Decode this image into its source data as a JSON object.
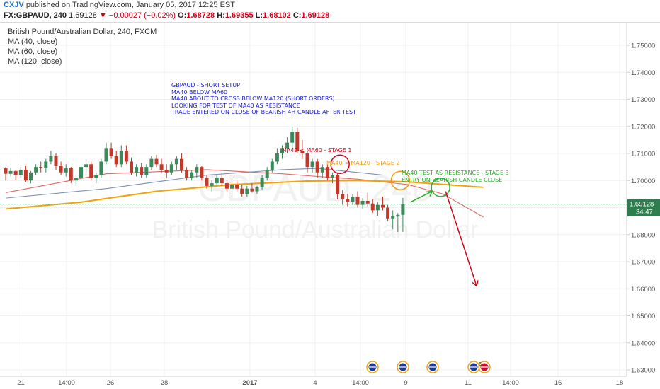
{
  "header": {
    "author": "CXJV",
    "published_text": "published on TradingView.com, January 05, 2017 12:25 EST"
  },
  "quote": {
    "symbol": "FX:GBPAUD, 240",
    "last": "1.69128",
    "change": "−0.00027 (−0.02%)",
    "open_label": "O:",
    "open": "1.68728",
    "high_label": "H:",
    "high": "1.69355",
    "low_label": "L:",
    "low": "1.68102",
    "close_label": "C:",
    "close": "1.69128"
  },
  "legend": {
    "title": "British Pound/Australian Dollar, 240, FXCM",
    "ma40": "MA (40, close)",
    "ma60": "MA (60, close)",
    "ma120": "MA (120, close)"
  },
  "annotations": {
    "setup_lines": [
      "GBPAUD - SHORT SETUP",
      "MA40 BELOW MA60",
      "MA40 ABOUT TO CROSS BELOW MA120 (SHORT ORDERS)",
      "LOOKING FOR TEST OF MA40 AS RESISTANCE",
      "TRADE ENTERED ON CLOSE OF BEARISH 4H CANDLE AFTER TEST"
    ],
    "stage1": "MA40 < MA60 - STAGE 1",
    "stage2": "MA40 < MA120 - STAGE 2",
    "stage3_lines": [
      "MA40 TEST AS RESISTANCE - STAGE 3",
      "ENTRY ON BEARISH CANDLE CLOSE"
    ]
  },
  "watermark": {
    "symbol": "GBPAUD, 240",
    "name": "British Pound/Australian Dollar"
  },
  "price_tag": {
    "price": "1.69128",
    "countdown": "34:47"
  },
  "colors": {
    "up": "#3c8a5c",
    "down": "#c0392b",
    "ma40": "#e06666",
    "ma60": "#7f8fb5",
    "ma120": "#f0a30a",
    "stage1": "#d0021b",
    "stage2": "#f39c12",
    "stage3": "#2bb02b",
    "setup": "#1a1ad6",
    "tag": "#2e7d4f"
  },
  "chart_data": {
    "type": "candlestick",
    "y_ticks": [
      "1.63000",
      "1.64000",
      "1.65000",
      "1.66000",
      "1.67000",
      "1.68000",
      "1.69000",
      "1.70000",
      "1.71000",
      "1.72000",
      "1.73000",
      "1.74000",
      "1.75000"
    ],
    "ylim": [
      1.627,
      1.758
    ],
    "x_ticks": [
      {
        "label": "21",
        "x": 29.5
      },
      {
        "label": "14:00",
        "x": 94
      },
      {
        "label": "26",
        "x": 156
      },
      {
        "label": "28",
        "x": 232
      },
      {
        "label": "2017",
        "x": 353
      },
      {
        "label": "4",
        "x": 445
      },
      {
        "label": "14:00",
        "x": 509
      },
      {
        "label": "9",
        "x": 573
      },
      {
        "label": "11",
        "x": 661
      },
      {
        "label": "14:00",
        "x": 721
      },
      {
        "label": "16",
        "x": 788
      },
      {
        "label": "18",
        "x": 875
      }
    ],
    "x_map": {
      "x": [
        21,
        28,
        31,
        38
      ],
      "i": [
        0,
        42,
        60,
        102
      ]
    },
    "candles_ohlc": [
      [
        1.7045,
        1.705,
        1.7,
        1.7025
      ],
      [
        1.7025,
        1.7045,
        1.7015,
        1.7035
      ],
      [
        1.7035,
        1.704,
        1.7,
        1.702
      ],
      [
        1.702,
        1.705,
        1.701,
        1.704
      ],
      [
        1.704,
        1.7055,
        1.6995,
        1.7
      ],
      [
        1.7,
        1.7035,
        1.699,
        1.703
      ],
      [
        1.703,
        1.706,
        1.702,
        1.705
      ],
      [
        1.705,
        1.707,
        1.703,
        1.7045
      ],
      [
        1.7045,
        1.708,
        1.703,
        1.707
      ],
      [
        1.707,
        1.711,
        1.706,
        1.709
      ],
      [
        1.709,
        1.71,
        1.704,
        1.7055
      ],
      [
        1.7055,
        1.707,
        1.702,
        1.703
      ],
      [
        1.703,
        1.706,
        1.7015,
        1.7045
      ],
      [
        1.7045,
        1.705,
        1.699,
        1.7
      ],
      [
        1.7,
        1.702,
        1.698,
        1.701
      ],
      [
        1.701,
        1.706,
        1.7005,
        1.705
      ],
      [
        1.705,
        1.708,
        1.703,
        1.706
      ],
      [
        1.706,
        1.707,
        1.7,
        1.701
      ],
      [
        1.701,
        1.703,
        1.699,
        1.702
      ],
      [
        1.702,
        1.708,
        1.701,
        1.707
      ],
      [
        1.707,
        1.714,
        1.706,
        1.712
      ],
      [
        1.712,
        1.714,
        1.708,
        1.709
      ],
      [
        1.709,
        1.711,
        1.705,
        1.706
      ],
      [
        1.706,
        1.713,
        1.705,
        1.711
      ],
      [
        1.711,
        1.713,
        1.706,
        1.707
      ],
      [
        1.707,
        1.7085,
        1.702,
        1.703
      ],
      [
        1.703,
        1.706,
        1.7015,
        1.705
      ],
      [
        1.705,
        1.7065,
        1.701,
        1.702
      ],
      [
        1.702,
        1.706,
        1.701,
        1.705
      ],
      [
        1.705,
        1.709,
        1.704,
        1.708
      ],
      [
        1.708,
        1.7095,
        1.705,
        1.706
      ],
      [
        1.706,
        1.708,
        1.703,
        1.704
      ],
      [
        1.704,
        1.706,
        1.701,
        1.703
      ],
      [
        1.703,
        1.707,
        1.702,
        1.706
      ],
      [
        1.706,
        1.709,
        1.704,
        1.708
      ],
      [
        1.708,
        1.71,
        1.703,
        1.704
      ],
      [
        1.704,
        1.705,
        1.7,
        1.701
      ],
      [
        1.701,
        1.704,
        1.7,
        1.703
      ],
      [
        1.703,
        1.706,
        1.701,
        1.705
      ],
      [
        1.705,
        1.7055,
        1.7,
        1.701
      ],
      [
        1.701,
        1.702,
        1.697,
        1.698
      ],
      [
        1.698,
        1.7,
        1.696,
        1.699
      ],
      [
        1.699,
        1.702,
        1.698,
        1.701
      ],
      [
        1.701,
        1.703,
        1.698,
        1.699
      ],
      [
        1.699,
        1.7,
        1.696,
        1.697
      ],
      [
        1.697,
        1.6995,
        1.695,
        1.6985
      ],
      [
        1.6985,
        1.7,
        1.696,
        1.697
      ],
      [
        1.697,
        1.6985,
        1.694,
        1.695
      ],
      [
        1.695,
        1.698,
        1.694,
        1.697
      ],
      [
        1.697,
        1.699,
        1.6955,
        1.696
      ],
      [
        1.696,
        1.698,
        1.695,
        1.6975
      ],
      [
        1.6975,
        1.702,
        1.6965,
        1.701
      ],
      [
        1.701,
        1.705,
        1.7,
        1.704
      ],
      [
        1.704,
        1.708,
        1.703,
        1.707
      ],
      [
        1.707,
        1.712,
        1.706,
        1.71
      ],
      [
        1.71,
        1.713,
        1.708,
        1.712
      ],
      [
        1.712,
        1.716,
        1.71,
        1.714
      ],
      [
        1.714,
        1.72,
        1.712,
        1.718
      ],
      [
        1.718,
        1.7195,
        1.71,
        1.711
      ],
      [
        1.711,
        1.715,
        1.708,
        1.71
      ],
      [
        1.71,
        1.711,
        1.703,
        1.705
      ],
      [
        1.705,
        1.708,
        1.703,
        1.707
      ],
      [
        1.707,
        1.708,
        1.701,
        1.703
      ],
      [
        1.703,
        1.706,
        1.701,
        1.705
      ],
      [
        1.705,
        1.706,
        1.7,
        1.701
      ],
      [
        1.701,
        1.703,
        1.699,
        1.702
      ],
      [
        1.702,
        1.703,
        1.693,
        1.695
      ],
      [
        1.695,
        1.6965,
        1.691,
        1.693
      ],
      [
        1.693,
        1.695,
        1.6905,
        1.692
      ],
      [
        1.692,
        1.695,
        1.691,
        1.694
      ],
      [
        1.694,
        1.696,
        1.69,
        1.691
      ],
      [
        1.691,
        1.6935,
        1.6895,
        1.6925
      ],
      [
        1.6925,
        1.6955,
        1.6905,
        1.6915
      ],
      [
        1.6915,
        1.693,
        1.688,
        1.689
      ],
      [
        1.689,
        1.692,
        1.687,
        1.691
      ],
      [
        1.691,
        1.694,
        1.689,
        1.69
      ],
      [
        1.69,
        1.691,
        1.685,
        1.686
      ],
      [
        1.686,
        1.689,
        1.682,
        1.687
      ],
      [
        1.687,
        1.688,
        1.681,
        1.6873
      ],
      [
        1.6873,
        1.6936,
        1.681,
        1.6913
      ]
    ],
    "ma_series": [
      {
        "name": "MA (40, close)",
        "x": [
          0,
          20,
          40,
          55,
          62,
          70,
          80,
          87,
          95
        ],
        "y": [
          1.6955,
          1.7025,
          1.704,
          1.7025,
          1.7015,
          1.7005,
          1.6985,
          1.695,
          1.6865
        ]
      },
      {
        "name": "MA (60, close)",
        "x": [
          0,
          20,
          40,
          55,
          62,
          70,
          75
        ],
        "y": [
          1.6935,
          1.697,
          1.702,
          1.704,
          1.7045,
          1.703,
          1.702
        ]
      },
      {
        "name": "MA (120, close)",
        "x": [
          0,
          15,
          30,
          45,
          60,
          70,
          80,
          95
        ],
        "y": [
          1.6895,
          1.692,
          1.696,
          1.6985,
          1.6998,
          1.7,
          1.6995,
          1.6975
        ]
      }
    ],
    "drawings": [
      {
        "name": "stage1-circle",
        "x": 66.5,
        "y": 1.706
      },
      {
        "name": "stage2-circle",
        "x": 78.5,
        "y": 1.7
      },
      {
        "name": "stage3-circle",
        "x": 86.5,
        "y": 1.6975
      }
    ],
    "current_price": 1.69128,
    "events": [
      "au",
      "au",
      "au",
      "au",
      "gb"
    ]
  }
}
